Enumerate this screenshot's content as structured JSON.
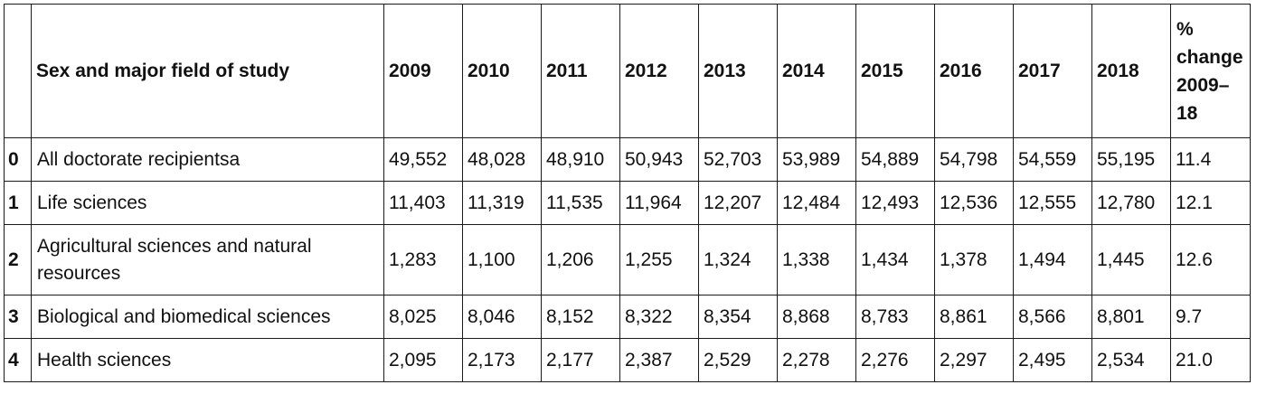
{
  "table": {
    "index_header": "",
    "field_header": "Sex and major field of study",
    "year_headers": [
      "2009",
      "2010",
      "2011",
      "2012",
      "2013",
      "2014",
      "2015",
      "2016",
      "2017",
      "2018"
    ],
    "change_header": "% change 2009–18",
    "rows": [
      {
        "index": "0",
        "field": "All doctorate recipientsa",
        "values": [
          "49,552",
          "48,028",
          "48,910",
          "50,943",
          "52,703",
          "53,989",
          "54,889",
          "54,798",
          "54,559",
          "55,195"
        ],
        "change": "11.4"
      },
      {
        "index": "1",
        "field": "Life sciences",
        "values": [
          "11,403",
          "11,319",
          "11,535",
          "11,964",
          "12,207",
          "12,484",
          "12,493",
          "12,536",
          "12,555",
          "12,780"
        ],
        "change": "12.1"
      },
      {
        "index": "2",
        "field": "Agricultural sciences and natural resources",
        "values": [
          "1,283",
          "1,100",
          "1,206",
          "1,255",
          "1,324",
          "1,338",
          "1,434",
          "1,378",
          "1,494",
          "1,445"
        ],
        "change": "12.6"
      },
      {
        "index": "3",
        "field": "Biological and biomedical sciences",
        "values": [
          "8,025",
          "8,046",
          "8,152",
          "8,322",
          "8,354",
          "8,868",
          "8,783",
          "8,861",
          "8,566",
          "8,801"
        ],
        "change": "9.7"
      },
      {
        "index": "4",
        "field": "Health sciences",
        "values": [
          "2,095",
          "2,173",
          "2,177",
          "2,387",
          "2,529",
          "2,278",
          "2,276",
          "2,297",
          "2,495",
          "2,534"
        ],
        "change": "21.0"
      }
    ]
  }
}
